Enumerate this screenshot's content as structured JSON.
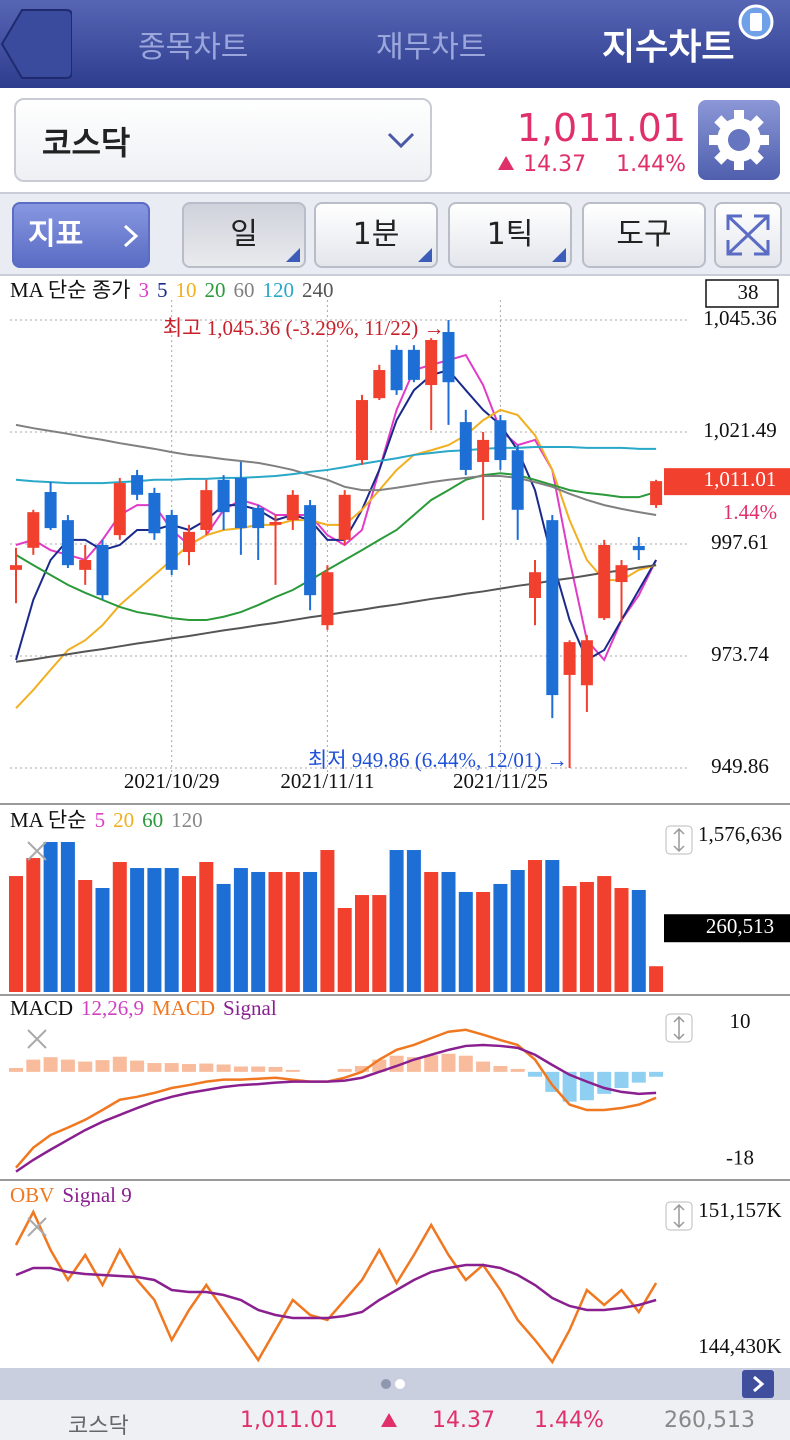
{
  "header": {
    "tabs": [
      "종목차트",
      "재무차트",
      "지수차트"
    ],
    "index_name": "코스닥",
    "price": "1,011.01",
    "change": "14.37",
    "change_pct": "1.44%"
  },
  "toolbar": {
    "indicator": "지표",
    "buttons": [
      "일",
      "1분",
      "1틱",
      "도구"
    ]
  },
  "chart_data": [
    {
      "type": "candlestick",
      "legend_title": "MA 단순 종가",
      "count": 38,
      "categories": [
        null,
        null,
        null,
        null,
        null,
        null,
        null,
        null,
        null,
        "2021/10/29",
        null,
        null,
        null,
        null,
        null,
        null,
        null,
        null,
        "2021/11/11",
        null,
        null,
        null,
        null,
        null,
        null,
        null,
        null,
        null,
        "2021/11/25",
        null,
        null,
        null,
        null,
        null,
        null,
        null,
        null,
        null
      ],
      "open": [
        992.1,
        996.8,
        1008.7,
        1002.7,
        992.1,
        997.4,
        999.5,
        1012.3,
        1008.5,
        1003.8,
        995.9,
        1000.6,
        1011.3,
        1011.7,
        1005.3,
        1001.7,
        1002.7,
        1005.9,
        980.3,
        998.5,
        1015.5,
        1028.7,
        1039.0,
        1039.0,
        1031.5,
        1042.8,
        1023.6,
        1015.1,
        1024.0,
        1017.6,
        986.1,
        1002.7,
        969.7,
        967.5,
        981.8,
        989.5,
        997.2,
        1005.9
      ],
      "high": [
        996.8,
        1004.9,
        1010.8,
        1003.8,
        997.4,
        998.5,
        1011.7,
        1013.4,
        1009.6,
        1004.9,
        1001.7,
        1011.3,
        1012.3,
        1015.1,
        1005.9,
        1003.8,
        1009.1,
        1007.0,
        993.1,
        1009.1,
        1029.4,
        1035.8,
        1040.0,
        1040.0,
        1041.5,
        1045.36,
        1026.2,
        1021.5,
        1025.1,
        1018.7,
        994.2,
        1003.8,
        977.1,
        978.2,
        998.5,
        994.2,
        999.1,
        1011.3
      ],
      "low": [
        985.0,
        995.3,
        1000.6,
        992.5,
        988.9,
        985.7,
        998.5,
        1007.0,
        998.5,
        991.0,
        993.1,
        999.5,
        1000.6,
        995.3,
        994.2,
        988.9,
        1000.6,
        983.5,
        979.3,
        997.4,
        1014.5,
        1028.3,
        1029.4,
        1032.1,
        1021.9,
        1023.0,
        1012.3,
        1002.7,
        1013.4,
        998.5,
        980.3,
        960.5,
        949.86,
        961.8,
        981.4,
        981.0,
        994.2,
        1005.3
      ],
      "close": [
        993.1,
        1004.4,
        1001.0,
        993.1,
        994.2,
        986.7,
        1010.6,
        1008.1,
        999.9,
        992.1,
        1000.2,
        1009.1,
        1004.4,
        1001.0,
        1001.0,
        1002.3,
        1008.1,
        986.7,
        991.6,
        1008.1,
        1028.3,
        1034.7,
        1030.4,
        1032.6,
        1041.1,
        1032.1,
        1013.4,
        1019.8,
        1015.5,
        1004.9,
        991.6,
        965.4,
        976.7,
        977.1,
        997.4,
        993.1,
        996.3,
        1011.01
      ],
      "up_color": "#f2402f",
      "down_color": "#1d6fd6",
      "series": [
        {
          "name": "3",
          "color": "#e03cc8",
          "values": [
            997.4,
            998.5,
            996.3,
            995.3,
            994.2,
            998.5,
            1003.8,
            1005.9,
            1005.9,
            1000.6,
            997.4,
            999.5,
            1004.9,
            1007.0,
            1005.9,
            1003.8,
            1003.8,
            1003.8,
            999.5,
            997.4,
            1000.6,
            1013.4,
            1026.2,
            1034.7,
            1035.8,
            1036.8,
            1037.9,
            1031.5,
            1021.9,
            1018.7,
            1019.8,
            1013.4,
            994.2,
            977.1,
            972.9,
            981.4,
            986.7,
            994.2
          ]
        },
        {
          "name": "5",
          "color": "#1a2a8a",
          "values": [
            972.9,
            985.7,
            994.2,
            998.5,
            998.5,
            996.3,
            997.4,
            1000.6,
            1000.6,
            1001.7,
            1000.6,
            1002.7,
            1005.9,
            1005.9,
            1004.9,
            1002.7,
            1003.8,
            1002.7,
            998.5,
            998.5,
            1004.9,
            1013.4,
            1024.0,
            1030.4,
            1033.6,
            1034.7,
            1030.4,
            1026.2,
            1023.0,
            1017.6,
            1009.1,
            994.2,
            981.4,
            972.9,
            975.0,
            981.4,
            987.8,
            994.2
          ]
        },
        {
          "name": "10",
          "color": "#f0b020",
          "values": [
            962.6,
            966.5,
            970.8,
            975.0,
            977.1,
            980.3,
            984.6,
            987.8,
            991.0,
            994.2,
            997.4,
            999.5,
            1000.6,
            1001.0,
            1001.7,
            1001.7,
            1002.7,
            1002.7,
            1001.7,
            1001.7,
            1004.9,
            1009.1,
            1013.4,
            1016.6,
            1017.6,
            1018.7,
            1020.8,
            1024.0,
            1026.2,
            1025.1,
            1020.8,
            1013.4,
            1002.7,
            994.2,
            989.9,
            989.9,
            992.1,
            993.1
          ]
        },
        {
          "name": "20",
          "color": "#2a9a3a",
          "values": [
            995.3,
            993.1,
            991.0,
            988.9,
            987.2,
            985.7,
            984.2,
            983.1,
            982.5,
            981.8,
            981.4,
            981.4,
            982.1,
            983.1,
            984.6,
            986.3,
            987.8,
            989.9,
            992.1,
            994.2,
            996.3,
            998.5,
            1000.6,
            1003.8,
            1007.0,
            1009.1,
            1011.3,
            1012.3,
            1012.7,
            1012.3,
            1011.3,
            1010.2,
            1009.1,
            1008.5,
            1008.1,
            1007.6,
            1007.6,
            1008.7
          ]
        },
        {
          "name": "60",
          "color": "#808080",
          "values": [
            1023.0,
            1022.3,
            1021.7,
            1021.1,
            1020.4,
            1019.8,
            1019.1,
            1018.5,
            1017.9,
            1017.2,
            1016.6,
            1016.2,
            1015.7,
            1015.3,
            1014.9,
            1014.2,
            1013.4,
            1012.3,
            1011.3,
            1009.8,
            1009.1,
            1009.1,
            1009.6,
            1010.2,
            1010.8,
            1011.3,
            1011.7,
            1012.1,
            1012.1,
            1011.7,
            1010.8,
            1009.8,
            1008.3,
            1007.0,
            1005.9,
            1005.1,
            1004.4,
            1003.8
          ]
        },
        {
          "name": "120",
          "color": "#29a8c8",
          "values": [
            1011.3,
            1011.0,
            1010.8,
            1010.6,
            1010.6,
            1010.6,
            1010.8,
            1011.0,
            1011.3,
            1011.3,
            1011.5,
            1011.5,
            1011.7,
            1011.7,
            1011.9,
            1012.1,
            1012.5,
            1013.0,
            1013.4,
            1014.0,
            1014.7,
            1015.3,
            1015.9,
            1016.6,
            1017.0,
            1017.4,
            1017.6,
            1017.9,
            1018.1,
            1018.1,
            1018.3,
            1018.3,
            1018.3,
            1018.1,
            1018.1,
            1018.1,
            1017.9,
            1017.9
          ]
        },
        {
          "name": "240",
          "color": "#555555",
          "values": [
            972.5,
            973.0,
            973.6,
            974.1,
            974.7,
            975.2,
            975.8,
            976.4,
            976.9,
            977.5,
            978.0,
            978.6,
            979.2,
            979.7,
            980.3,
            980.8,
            981.4,
            982.0,
            982.5,
            983.1,
            983.6,
            984.2,
            984.7,
            985.3,
            985.9,
            986.4,
            987.0,
            987.5,
            988.1,
            988.7,
            989.2,
            989.8,
            990.3,
            990.9,
            991.5,
            992.0,
            992.6,
            993.1
          ]
        }
      ],
      "ylim": [
        943.04,
        1053.89
      ],
      "yticks": [
        {
          "value": 1045.36,
          "label": "1,045.36"
        },
        {
          "value": 1021.49,
          "label": "1,021.49"
        },
        997.61,
        973.74,
        949.86
      ],
      "grid": true,
      "current": {
        "value": 1011.01,
        "label": "1,011.01",
        "change": "1.44%"
      },
      "max_annotation": "최고 1,045.36 (-3.29%, 11/22) →",
      "min_annotation": "최저 949.86 (6.44%, 12/01) →"
    },
    {
      "type": "bar",
      "legend_title": "MA 단순",
      "ma_legend": [
        {
          "name": "5",
          "color": "#e03cc8"
        },
        {
          "name": "20",
          "color": "#f0b020"
        },
        {
          "name": "60",
          "color": "#2a9a3a"
        },
        {
          "name": "120",
          "color": "#888888"
        }
      ],
      "values": [
        1172000,
        1354000,
        1516000,
        1516000,
        1132000,
        1051000,
        1314000,
        1253000,
        1253000,
        1253000,
        1172000,
        1314000,
        1092000,
        1253000,
        1213000,
        1213000,
        1213000,
        1213000,
        1435000,
        849000,
        980000,
        980000,
        1435000,
        1435000,
        1213000,
        1213000,
        1011000,
        1011000,
        1092000,
        1233000,
        1334000,
        1334000,
        1071000,
        1112000,
        1172000,
        1051000,
        1031000,
        260513
      ],
      "ylim": [
        0,
        1859688
      ],
      "yticks": [
        {
          "value": 1576636,
          "label": "1,576,636"
        }
      ],
      "current": {
        "value": 260513,
        "label": "260,513"
      }
    },
    {
      "type": "macd",
      "title": "MACD",
      "params": "12,26,9",
      "series": [
        {
          "name": "MACD",
          "color": "#f07820",
          "values": [
            -19.6,
            -15.5,
            -12.9,
            -11.4,
            -9.8,
            -7.8,
            -5.7,
            -5.1,
            -4.3,
            -3.3,
            -2.7,
            -2.0,
            -1.6,
            -1.6,
            -1.4,
            -1.2,
            -1.6,
            -2.0,
            -2.0,
            -1.2,
            0,
            2.5,
            4.5,
            5.5,
            6.9,
            8.2,
            8.6,
            7.6,
            6.5,
            5.5,
            2.5,
            -2.7,
            -6.7,
            -7.8,
            -7.8,
            -7.4,
            -6.7,
            -5.3
          ]
        },
        {
          "name": "Signal",
          "color": "#8a2090",
          "values": [
            -20.4,
            -18.0,
            -15.9,
            -13.9,
            -11.9,
            -10.2,
            -8.8,
            -7.4,
            -6.1,
            -5.1,
            -4.3,
            -3.7,
            -3.1,
            -2.7,
            -2.5,
            -2.2,
            -2.0,
            -2.0,
            -2.0,
            -1.8,
            -1.2,
            0,
            1.2,
            2.5,
            3.5,
            4.5,
            5.3,
            5.5,
            5.3,
            4.9,
            3.5,
            1.4,
            -0.6,
            -2.0,
            -3.3,
            -4.1,
            -4.5,
            -4.3
          ]
        }
      ],
      "histogram": {
        "values": [
          0.8,
          2.5,
          3.0,
          2.5,
          2.1,
          2.4,
          3.1,
          2.3,
          1.8,
          1.8,
          1.6,
          1.7,
          1.5,
          1.1,
          1.1,
          1.0,
          0.4,
          0,
          0,
          0.6,
          1.2,
          2.5,
          3.3,
          3.0,
          3.4,
          3.7,
          3.3,
          2.1,
          1.2,
          0.6,
          -1.0,
          -4.1,
          -6.1,
          -5.8,
          -4.5,
          -3.3,
          -2.2,
          -1.0
        ],
        "up_color": "#f8bc9c",
        "down_color": "#8fd0f2"
      },
      "ylim": [
        -21.7,
        15.1
      ],
      "yticks": [
        10,
        -18
      ]
    },
    {
      "type": "line",
      "series": [
        {
          "name": "OBV",
          "color": "#f07820",
          "values": [
            149525,
            151157,
            149278,
            147794,
            149030,
            147546,
            149278,
            147794,
            146805,
            144826,
            146310,
            147546,
            146310,
            145073,
            143837,
            145321,
            146805,
            146063,
            145815,
            146805,
            147794,
            149278,
            147645,
            149030,
            150514,
            149030,
            147794,
            148536,
            147299,
            145815,
            144826,
            143738,
            145321,
            147299,
            146557,
            147299,
            146211,
            147645
          ]
        },
        {
          "name": "Signal 9",
          "color": "#8a2090",
          "values": [
            148041,
            148387,
            148387,
            148189,
            148090,
            148041,
            147992,
            147942,
            147794,
            147299,
            147200,
            147200,
            147052,
            146805,
            146310,
            146063,
            145914,
            145914,
            145914,
            146013,
            146211,
            146805,
            147299,
            147794,
            148189,
            148387,
            148536,
            148536,
            148387,
            148041,
            147546,
            146903,
            146508,
            146310,
            146310,
            146409,
            146557,
            146805
          ]
        }
      ],
      "ylim": [
        143441,
        152641
      ],
      "yticks": [
        {
          "value": 151157,
          "label": "151,157K"
        },
        {
          "value": 144430,
          "label": "144,430K"
        }
      ]
    }
  ],
  "footer": {
    "name": "코스닥",
    "price": "1,011.01",
    "change": "14.37",
    "change_pct": "1.44%",
    "volume": "260,513"
  }
}
